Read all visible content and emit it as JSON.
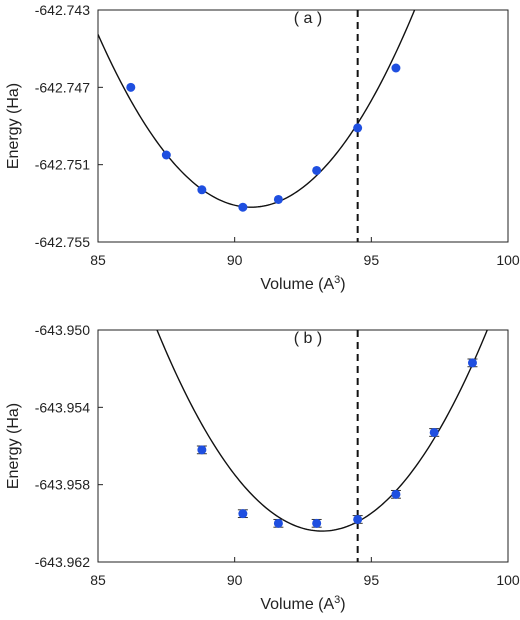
{
  "chart_data": [
    {
      "type": "scatter",
      "panel_label": "( a )",
      "xlabel": "Volume (A",
      "xlabel_sup": "3",
      "xlabel_suffix": ")",
      "ylabel": "Energy (Ha)",
      "xlim": [
        85,
        100
      ],
      "ylim": [
        -642.755,
        -642.743
      ],
      "xticks": [
        "85",
        "90",
        "95",
        "100"
      ],
      "yticks": [
        "-642.743",
        "-642.747",
        "-642.751",
        "-642.755"
      ],
      "ytick_values": [
        -642.743,
        -642.747,
        -642.751,
        -642.755
      ],
      "vline_x": 94.5,
      "point_color": "#1f4fe0",
      "points": [
        {
          "x": 86.2,
          "y": -642.747
        },
        {
          "x": 87.5,
          "y": -642.7505
        },
        {
          "x": 88.8,
          "y": -642.7523
        },
        {
          "x": 90.3,
          "y": -642.7532
        },
        {
          "x": 91.6,
          "y": -642.7528
        },
        {
          "x": 93.0,
          "y": -642.7513
        },
        {
          "x": 94.5,
          "y": -642.7491
        },
        {
          "x": 95.9,
          "y": -642.746
        }
      ],
      "fit": {
        "vertex_x": 90.6,
        "vertex_y": -642.7532,
        "curvature": 0.000285
      }
    },
    {
      "type": "scatter",
      "panel_label": "( b )",
      "xlabel": "Volume (A",
      "xlabel_sup": "3",
      "xlabel_suffix": ")",
      "ylabel": "Energy (Ha)",
      "xlim": [
        85,
        100
      ],
      "ylim": [
        -643.962,
        -643.95
      ],
      "xticks": [
        "85",
        "90",
        "95",
        "100"
      ],
      "yticks": [
        "-643.950",
        "-643.954",
        "-643.958",
        "-643.962"
      ],
      "ytick_values": [
        -643.95,
        -643.954,
        -643.958,
        -643.962
      ],
      "vline_x": 94.5,
      "point_color": "#1f4fe0",
      "points": [
        {
          "x": 88.8,
          "y": -643.9562,
          "err": 0.0002
        },
        {
          "x": 90.3,
          "y": -643.9595,
          "err": 0.0002
        },
        {
          "x": 91.6,
          "y": -643.96,
          "err": 0.0002
        },
        {
          "x": 93.0,
          "y": -643.96,
          "err": 0.0002
        },
        {
          "x": 94.5,
          "y": -643.9598,
          "err": 0.0002
        },
        {
          "x": 95.9,
          "y": -643.9585,
          "err": 0.0002
        },
        {
          "x": 97.3,
          "y": -643.9553,
          "err": 0.0002
        },
        {
          "x": 98.7,
          "y": -643.9517,
          "err": 0.0002
        }
      ],
      "fit": {
        "vertex_x": 93.2,
        "vertex_y": -643.9604,
        "curvature": 0.000285
      }
    }
  ]
}
